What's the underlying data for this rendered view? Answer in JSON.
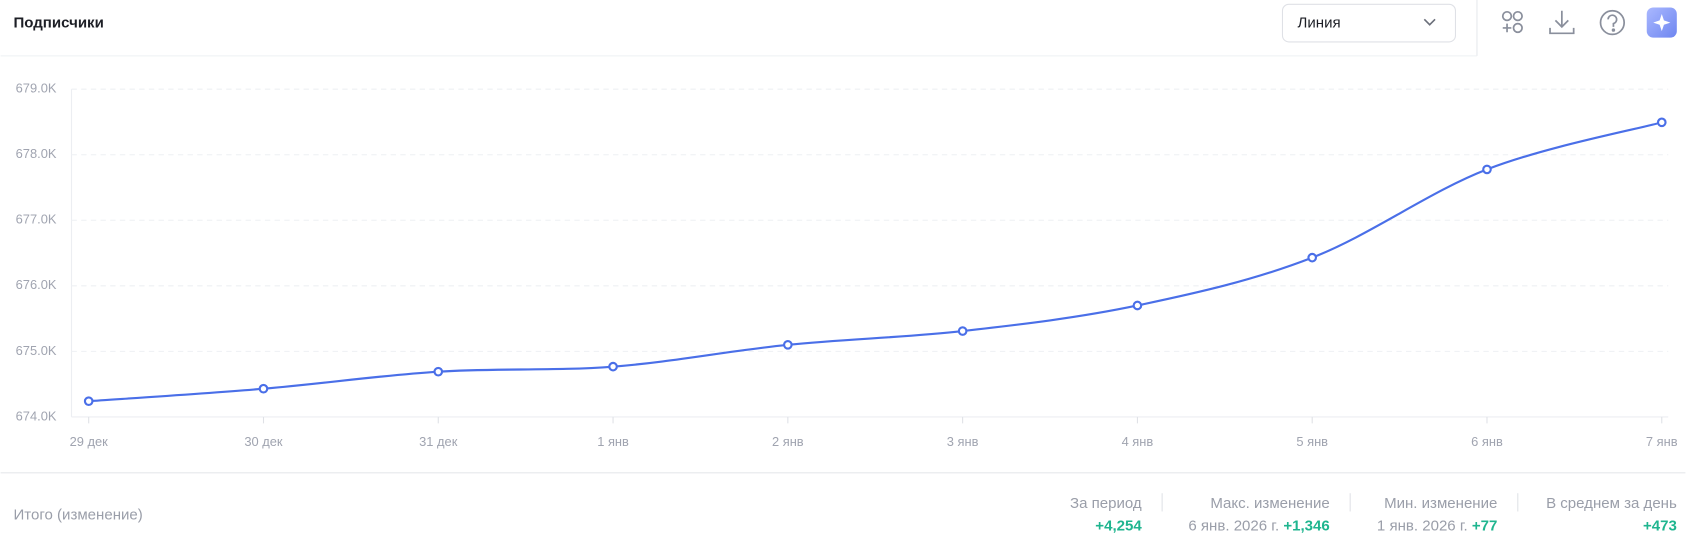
{
  "header": {
    "title": "Подписчики",
    "view_select": "Линия"
  },
  "chart_data": {
    "type": "line",
    "categories": [
      "29 дек",
      "30 дек",
      "31 дек",
      "1 янв",
      "2 янв",
      "3 янв",
      "4 янв",
      "5 янв",
      "6 янв",
      "7 янв"
    ],
    "values": [
      674240,
      674430,
      674690,
      674767,
      675100,
      675310,
      675700,
      676430,
      677776,
      678494
    ],
    "color": "#4a6fe8",
    "ylim": [
      674000,
      679000
    ],
    "yticks": [
      {
        "value": 674000,
        "label": "674.0K"
      },
      {
        "value": 675000,
        "label": "675.0K"
      },
      {
        "value": 676000,
        "label": "676.0K"
      },
      {
        "value": 677000,
        "label": "677.0K"
      },
      {
        "value": 678000,
        "label": "678.0K"
      },
      {
        "value": 679000,
        "label": "679.0K"
      }
    ],
    "grid": true
  },
  "summary": {
    "label": "Итого (изменение)",
    "stats": [
      {
        "label": "За период",
        "value": "+4,254"
      },
      {
        "label": "Макс. изменение",
        "date": "6 янв. 2026 г.",
        "value": "+1,346"
      },
      {
        "label": "Мин. изменение",
        "date": "1 янв. 2026 г.",
        "value": "+77"
      },
      {
        "label": "В среднем за день",
        "value": "+473"
      }
    ]
  }
}
